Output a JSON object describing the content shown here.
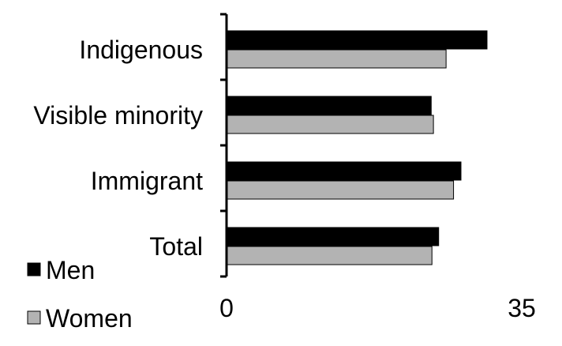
{
  "chart_data": {
    "type": "bar",
    "orientation": "horizontal",
    "categories": [
      "Indigenous",
      "Visible minority",
      "Immigrant",
      "Total"
    ],
    "series": [
      {
        "name": "Men",
        "values": [
          35.0,
          27.5,
          31.5,
          28.5
        ],
        "color": "#000000"
      },
      {
        "name": "Women",
        "values": [
          29.5,
          27.8,
          30.5,
          27.6
        ],
        "color": "#b3b3b3"
      }
    ],
    "xlim": [
      0,
      35
    ],
    "x_ticks": [
      "0",
      "35"
    ],
    "title": "",
    "xlabel": "",
    "ylabel": "",
    "grid": false,
    "legend_position": "bottom-left"
  }
}
